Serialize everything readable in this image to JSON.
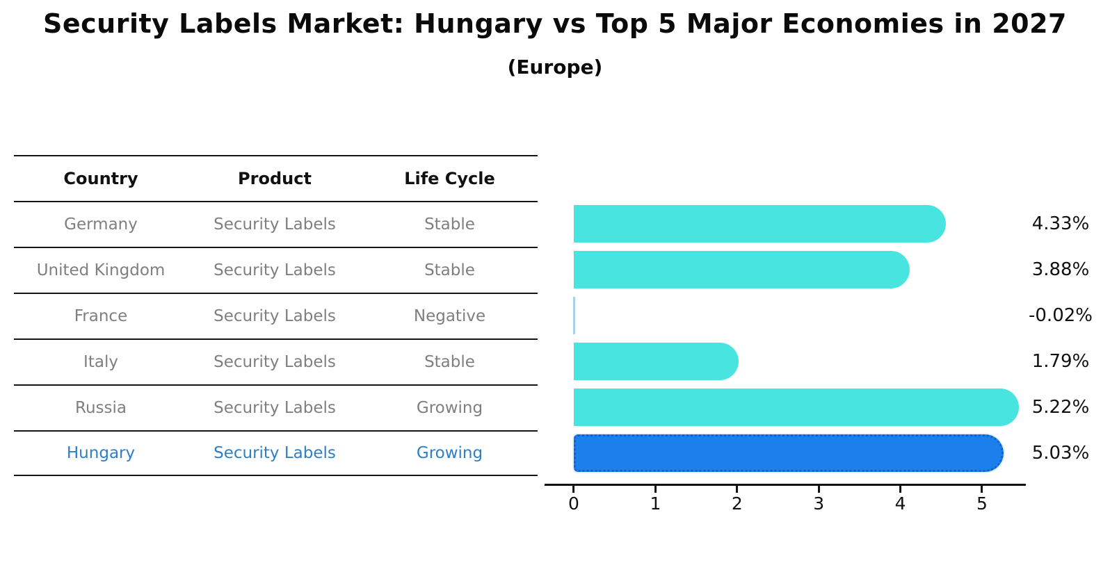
{
  "title": "Security Labels Market: Hungary vs Top 5 Major Economies in 2027",
  "subtitle": "(Europe)",
  "table": {
    "headers": {
      "country": "Country",
      "product": "Product",
      "life_cycle": "Life Cycle"
    },
    "rows": [
      {
        "country": "Germany",
        "product": "Security Labels",
        "life_cycle": "Stable",
        "highlight": false
      },
      {
        "country": "United Kingdom",
        "product": "Security Labels",
        "life_cycle": "Stable",
        "highlight": false
      },
      {
        "country": "France",
        "product": "Security Labels",
        "life_cycle": "Negative",
        "highlight": false
      },
      {
        "country": "Italy",
        "product": "Security Labels",
        "life_cycle": "Stable",
        "highlight": false
      },
      {
        "country": "Russia",
        "product": "Security Labels",
        "life_cycle": "Growing",
        "highlight": false
      },
      {
        "country": "Hungary",
        "product": "Security Labels",
        "life_cycle": "Growing",
        "highlight": true
      }
    ]
  },
  "chart_data": {
    "type": "bar",
    "orientation": "horizontal",
    "title": "Security Labels Market: Hungary vs Top 5 Major Economies in 2027",
    "subtitle": "(Europe)",
    "categories": [
      "Germany",
      "United Kingdom",
      "France",
      "Italy",
      "Russia",
      "Hungary"
    ],
    "values": [
      4.33,
      3.88,
      -0.02,
      1.79,
      5.22,
      5.03
    ],
    "value_labels": [
      "4.33%",
      "3.88%",
      "-0.02%",
      "1.79%",
      "5.22%",
      "5.03%"
    ],
    "x_ticks": [
      "0",
      "1",
      "2",
      "3",
      "4",
      "5"
    ],
    "xlim": [
      -0.35,
      5.55
    ],
    "highlight_index": 5,
    "grid": false,
    "legend": "none",
    "xlabel": "",
    "ylabel": ""
  },
  "colors": {
    "bar_cyan": "#48E5E0",
    "bar_blue": "#1C80EC",
    "bar_blue_border": "#1460C8",
    "negative_line": "#A6D3F0",
    "highlight_text": "#2D7FC7",
    "text_gray": "#7F7F7F"
  }
}
